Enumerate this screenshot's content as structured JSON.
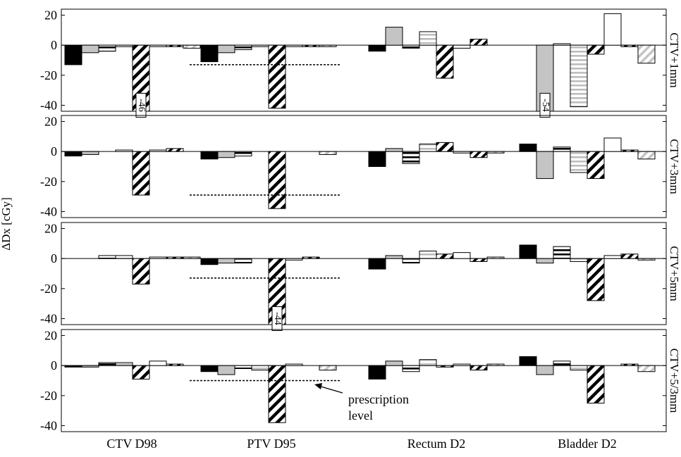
{
  "chart_data": {
    "type": "bar",
    "ylabel": "ΔDx [cGy]",
    "categories": [
      "CTV D98",
      "PTV D95",
      "Rectum D2",
      "Bladder D2"
    ],
    "y_ticks": [
      20,
      0,
      -20,
      -40
    ],
    "ylim": [
      -44,
      24
    ],
    "grid": false,
    "bars_per_group": 8,
    "bar_patterns": [
      "solid-black",
      "solid-gray",
      "horizontal-lines-black",
      "horizontal-lines-gray",
      "diagonal-hatch-black",
      "solid-white",
      "diagonal-hatch-black-dense",
      "diagonal-hatch-gray"
    ],
    "annotation": {
      "text": "prescription level",
      "panel": 3,
      "arrow_to": "prescription-line"
    },
    "panels": [
      {
        "label": "CTV+1mm",
        "prescription_level": -13,
        "groups": [
          [
            -13,
            -5,
            -4,
            -1,
            -46,
            -1,
            -1,
            -2
          ],
          [
            -11,
            -5,
            -3,
            -1,
            -42,
            -1,
            -1,
            -1
          ],
          [
            -4,
            12,
            -2,
            9,
            -22,
            -2,
            4,
            0
          ],
          [
            0,
            -54,
            1,
            -41,
            -6,
            21,
            -1,
            -12
          ]
        ],
        "value_labels": [
          {
            "group": 0,
            "bar": 4,
            "text": "-46"
          },
          {
            "group": 3,
            "bar": 1,
            "text": "-54"
          }
        ]
      },
      {
        "label": "CTV+3mm",
        "prescription_level": -29,
        "groups": [
          [
            -3,
            -2,
            0,
            1,
            -29,
            1,
            2,
            0
          ],
          [
            -5,
            -4,
            -3,
            0,
            -38,
            0,
            0,
            -2
          ],
          [
            -10,
            2,
            -8,
            5,
            6,
            -1,
            -4,
            -1
          ],
          [
            5,
            -18,
            3,
            -14,
            -18,
            9,
            1,
            -5
          ]
        ],
        "value_labels": []
      },
      {
        "label": "CTV+5mm",
        "prescription_level": -13,
        "groups": [
          [
            0,
            0,
            2,
            2,
            -17,
            1,
            1,
            1
          ],
          [
            -4,
            -3,
            -3,
            0,
            -44,
            -1,
            1,
            0
          ],
          [
            -7,
            2,
            -3,
            5,
            3,
            4,
            -2,
            1
          ],
          [
            9,
            -3,
            8,
            -2,
            -28,
            2,
            3,
            -1
          ]
        ],
        "value_labels": [
          {
            "group": 1,
            "bar": 4,
            "text": "-44"
          }
        ]
      },
      {
        "label": "CTV+5/3mm",
        "prescription_level": -10,
        "groups": [
          [
            -1,
            -1,
            2,
            2,
            -9,
            3,
            1,
            0
          ],
          [
            -4,
            -6,
            -2,
            -3,
            -38,
            1,
            0,
            -3
          ],
          [
            -9,
            3,
            -4,
            4,
            -1,
            1,
            -3,
            1
          ],
          [
            6,
            -6,
            3,
            -3,
            -25,
            0,
            1,
            -4
          ]
        ],
        "value_labels": []
      }
    ]
  }
}
